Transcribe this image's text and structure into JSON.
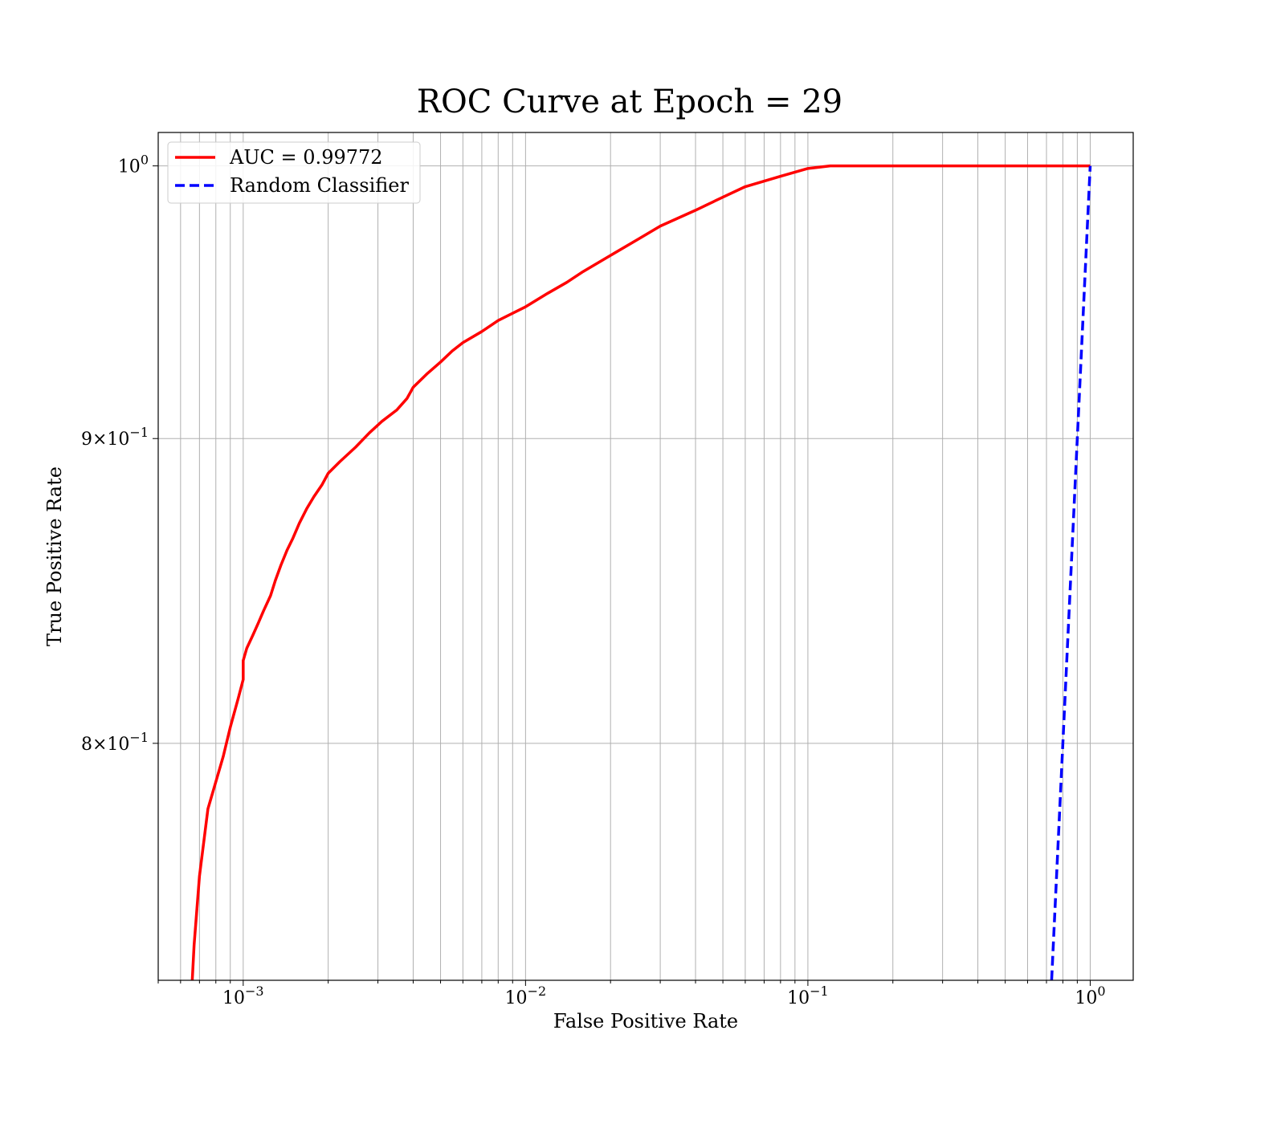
{
  "chart_data": {
    "type": "line",
    "title": "ROC Curve at Epoch = 29",
    "xlabel": "False Positive Rate",
    "ylabel": "True Positive Rate",
    "xscale": "log",
    "yscale": "log",
    "xlim": [
      0.0005,
      1.42
    ],
    "ylim": [
      0.73,
      1.013
    ],
    "x_ticks": [
      {
        "value": 0.001,
        "base": "10",
        "exp": "−3"
      },
      {
        "value": 0.01,
        "base": "10",
        "exp": "−2"
      },
      {
        "value": 0.1,
        "base": "10",
        "exp": "−1"
      },
      {
        "value": 1,
        "base": "10",
        "exp": "0"
      }
    ],
    "y_ticks": [
      {
        "value": 0.8,
        "mant": "8",
        "base": "10",
        "exp": "−1"
      },
      {
        "value": 0.9,
        "mant": "9",
        "base": "10",
        "exp": "−1"
      },
      {
        "value": 1.0,
        "mant": "",
        "base": "10",
        "exp": "0"
      }
    ],
    "grid": true,
    "legend_position": "top-left",
    "series": [
      {
        "name": "AUC = 0.99772",
        "color": "#ff0000",
        "style": "solid",
        "x": [
          0.00066,
          0.00067,
          0.0007,
          0.00075,
          0.00085,
          0.0009,
          0.00096,
          0.001,
          0.001,
          0.00103,
          0.00108,
          0.00113,
          0.00118,
          0.00125,
          0.0013,
          0.00136,
          0.00143,
          0.0015,
          0.00158,
          0.00168,
          0.00178,
          0.0019,
          0.002,
          0.0022,
          0.0025,
          0.0028,
          0.0031,
          0.0035,
          0.0038,
          0.004,
          0.0045,
          0.005,
          0.0055,
          0.006,
          0.007,
          0.008,
          0.01,
          0.012,
          0.014,
          0.016,
          0.02,
          0.025,
          0.03,
          0.04,
          0.05,
          0.06,
          0.08,
          0.1,
          0.12,
          0.2,
          0.5,
          1.0
        ],
        "y": [
          0.73,
          0.74,
          0.76,
          0.78,
          0.796,
          0.805,
          0.814,
          0.82,
          0.826,
          0.83,
          0.834,
          0.838,
          0.842,
          0.847,
          0.852,
          0.857,
          0.862,
          0.866,
          0.871,
          0.876,
          0.88,
          0.884,
          0.888,
          0.892,
          0.897,
          0.902,
          0.906,
          0.91,
          0.914,
          0.918,
          0.923,
          0.927,
          0.931,
          0.934,
          0.938,
          0.942,
          0.947,
          0.952,
          0.956,
          0.96,
          0.966,
          0.972,
          0.977,
          0.983,
          0.988,
          0.992,
          0.996,
          0.999,
          1.0,
          1.0,
          1.0,
          1.0
        ]
      },
      {
        "name": "Random Classifier",
        "color": "#0000ff",
        "style": "dashed",
        "x": [
          0.71,
          0.75,
          0.8,
          0.85,
          0.9,
          0.95,
          1.0
        ],
        "y": [
          0.71,
          0.75,
          0.8,
          0.85,
          0.9,
          0.95,
          1.0
        ]
      }
    ]
  }
}
